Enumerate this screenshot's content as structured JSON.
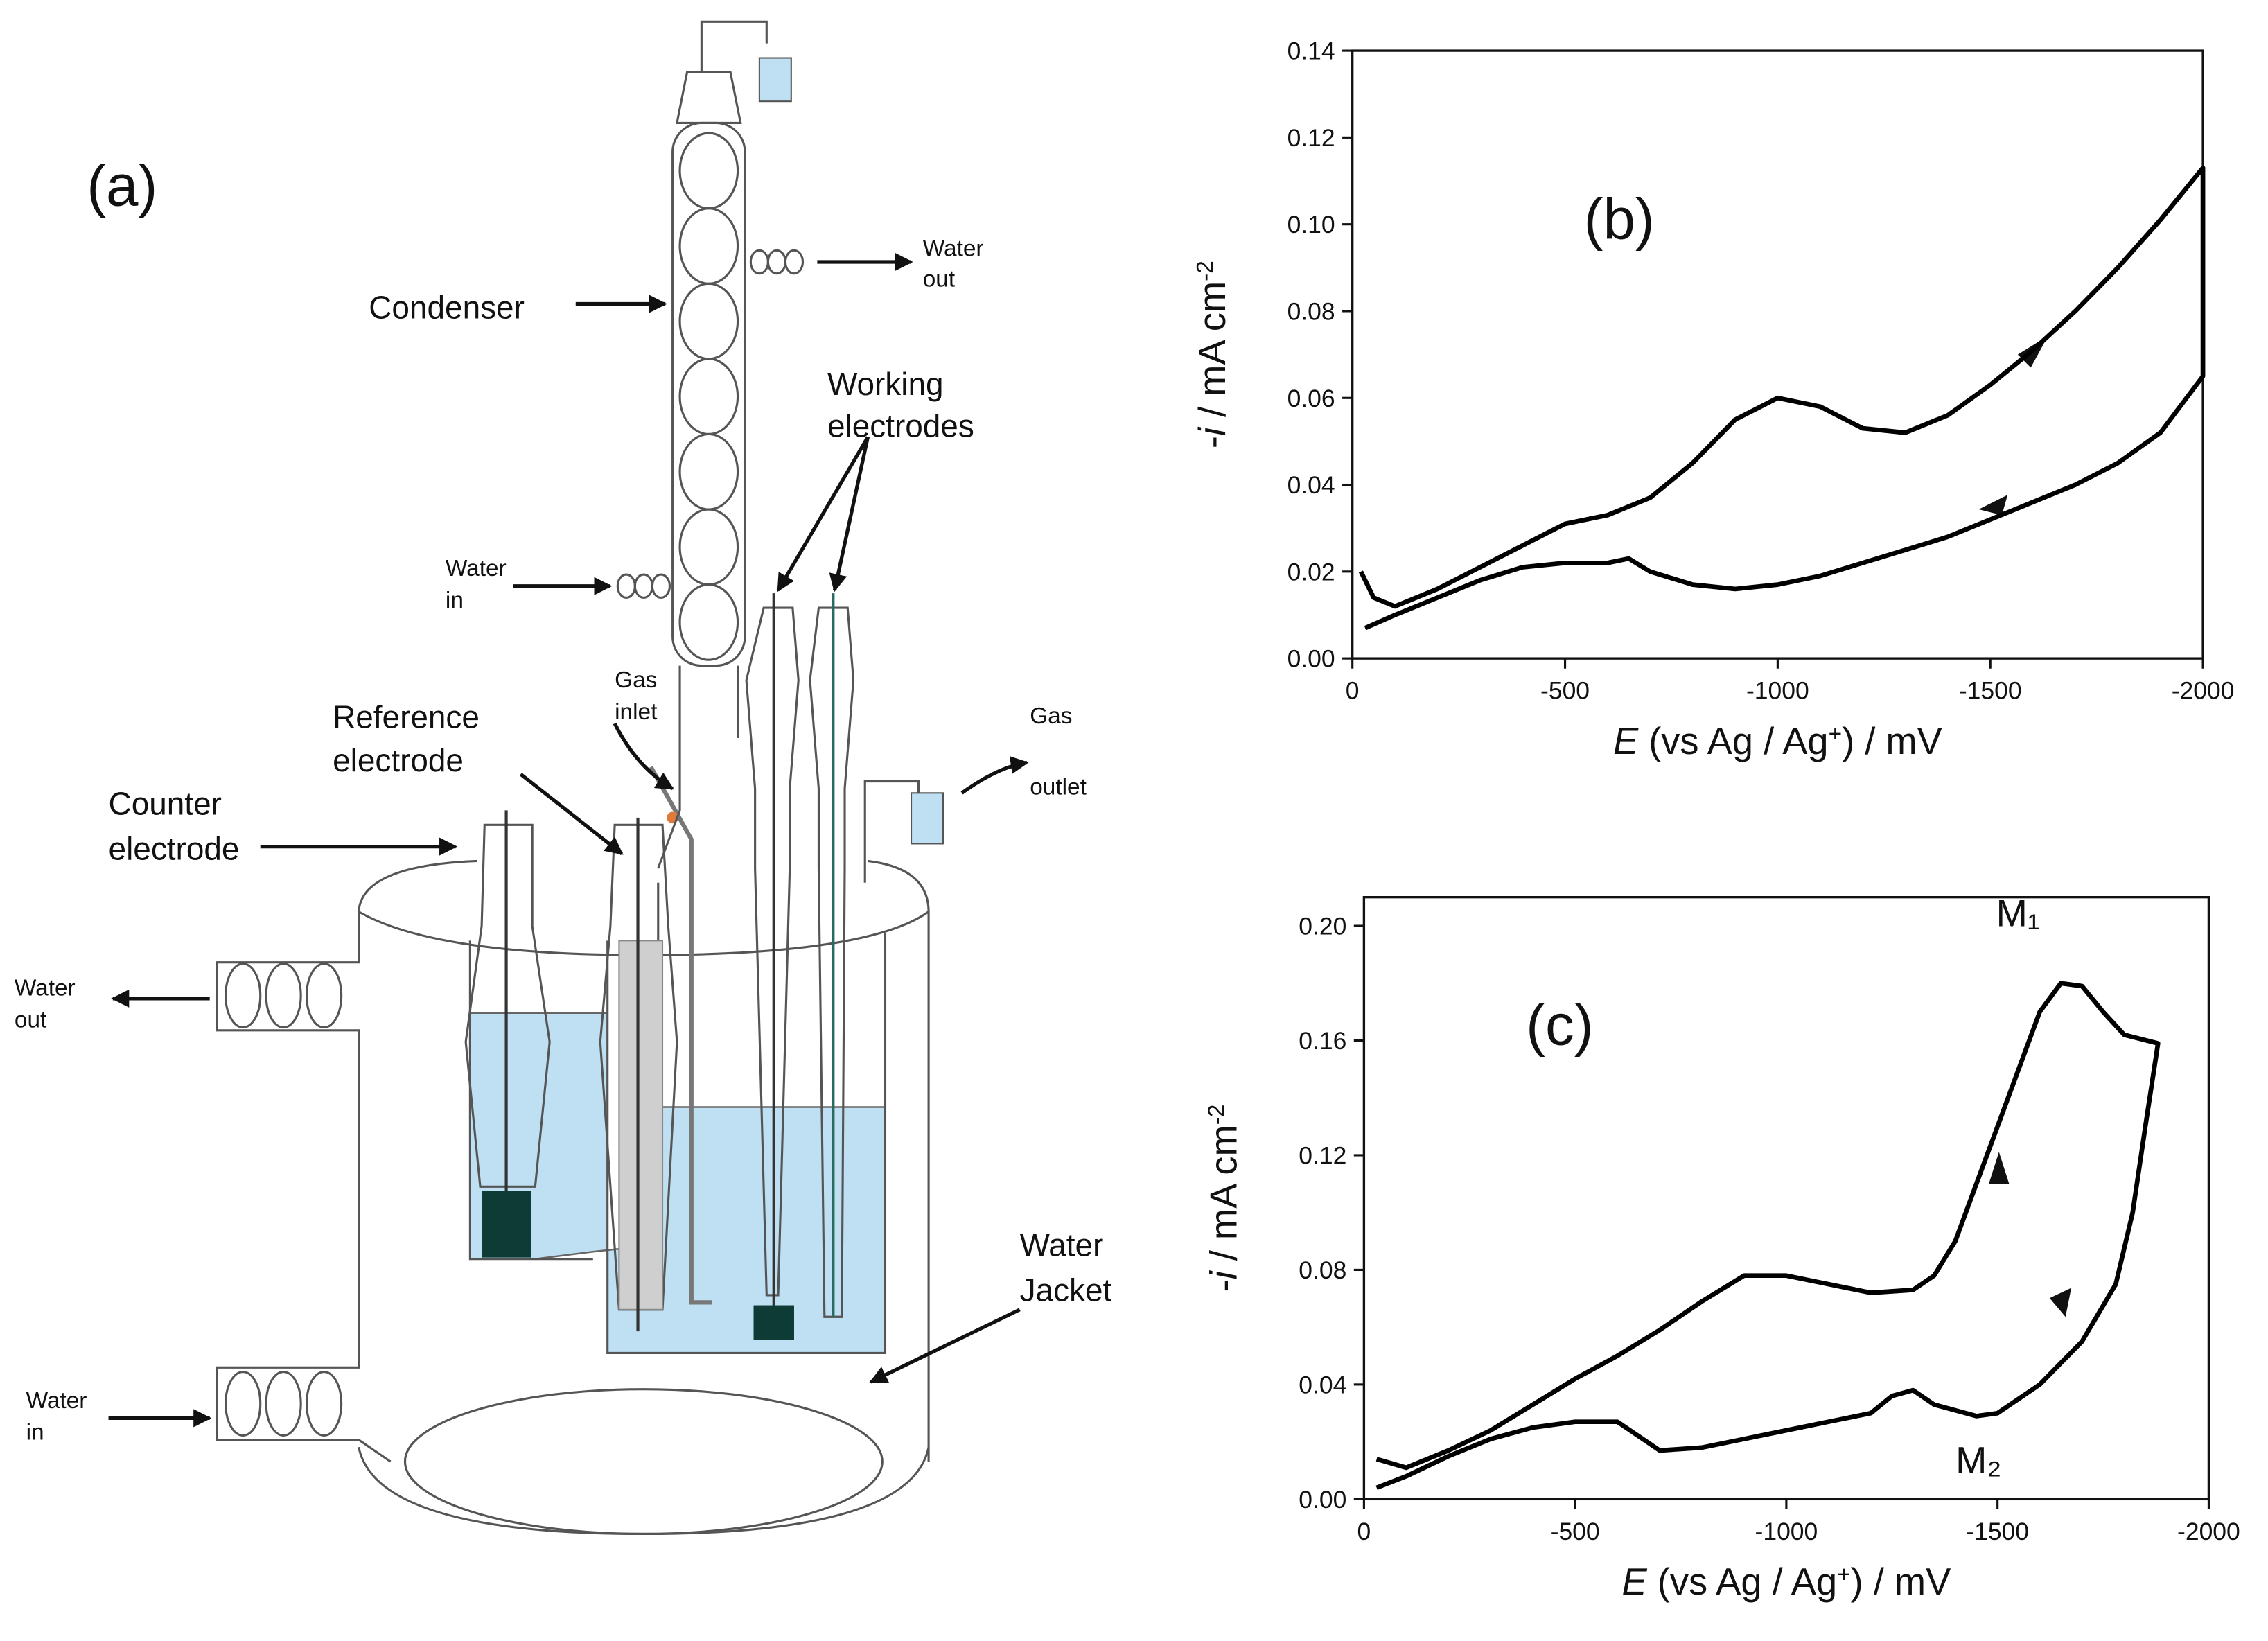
{
  "diagram": {
    "panel_label": "(a)",
    "labels": {
      "condenser": [
        "Condenser"
      ],
      "water_out_top": [
        "Water",
        "out"
      ],
      "working": [
        "Working",
        "electrodes"
      ],
      "water_in_top": [
        "Water",
        "in"
      ],
      "gas_inlet": [
        "Gas",
        "inlet"
      ],
      "reference": [
        "Reference",
        "electrode"
      ],
      "counter": [
        "Counter",
        "electrode"
      ],
      "water_out_left": [
        "Water",
        "out"
      ],
      "gas_outlet": [
        "Gas",
        "outlet"
      ],
      "jacket": [
        "Water",
        "Jacket"
      ],
      "water_in_left": [
        "Water",
        "in"
      ]
    }
  },
  "chart_data": [
    {
      "type": "line",
      "panel_label": "(b)",
      "color": "#000000",
      "xlabel": [
        {
          "text": "E",
          "style": "italic"
        },
        {
          "text": " (vs Ag / Ag"
        },
        {
          "text": "+",
          "style": "sup"
        },
        {
          "text": ") / mV"
        }
      ],
      "ylabel": [
        {
          "text": "-"
        },
        {
          "text": "i",
          "style": "italic"
        },
        {
          "text": " / mA cm"
        },
        {
          "text": "-2",
          "style": "sup"
        }
      ],
      "xlim": [
        0,
        -2000
      ],
      "xticks": [
        0,
        -500,
        -1000,
        -1500,
        -2000
      ],
      "ylim": [
        0,
        0.14
      ],
      "yticks": [
        {
          "value": 0,
          "label": "0.00"
        },
        {
          "value": 0.02,
          "label": "0.02"
        },
        {
          "value": 0.04,
          "label": "0.04"
        },
        {
          "value": 0.06,
          "label": "0.06"
        },
        {
          "value": 0.08,
          "label": "0.08"
        },
        {
          "value": 0.1,
          "label": "0.10"
        },
        {
          "value": 0.12,
          "label": "0.12"
        },
        {
          "value": 0.14,
          "label": "0.14"
        }
      ],
      "x": [
        -20,
        -50,
        -100,
        -200,
        -300,
        -400,
        -500,
        -600,
        -700,
        -800,
        -900,
        -1000,
        -1100,
        -1200,
        -1300,
        -1400,
        -1500,
        -1600,
        -1700,
        -1800,
        -1900,
        -2000,
        -2000,
        -1900,
        -1800,
        -1700,
        -1600,
        -1500,
        -1400,
        -1300,
        -1200,
        -1100,
        -1000,
        -900,
        -800,
        -700,
        -650,
        -600,
        -500,
        -400,
        -300,
        -200,
        -100,
        -30
      ],
      "values": [
        0.02,
        0.014,
        0.012,
        0.016,
        0.021,
        0.026,
        0.031,
        0.033,
        0.037,
        0.045,
        0.055,
        0.06,
        0.058,
        0.053,
        0.052,
        0.056,
        0.063,
        0.071,
        0.08,
        0.09,
        0.101,
        0.113,
        0.065,
        0.052,
        0.045,
        0.04,
        0.036,
        0.032,
        0.028,
        0.025,
        0.022,
        0.019,
        0.017,
        0.016,
        0.017,
        0.02,
        0.023,
        0.022,
        0.022,
        0.021,
        0.018,
        0.014,
        0.01,
        0.007
      ]
    },
    {
      "type": "line",
      "panel_label": "(c)",
      "color": "#000000",
      "annotations": [
        "M₁",
        "M₂"
      ],
      "xlabel": [
        {
          "text": "E",
          "style": "italic"
        },
        {
          "text": " (vs Ag / Ag"
        },
        {
          "text": "+",
          "style": "sup"
        },
        {
          "text": ") / mV"
        }
      ],
      "ylabel": [
        {
          "text": "-"
        },
        {
          "text": "i",
          "style": "italic"
        },
        {
          "text": " / mA cm"
        },
        {
          "text": "-2",
          "style": "sup"
        }
      ],
      "xlim": [
        0,
        -2000
      ],
      "xticks": [
        0,
        -500,
        -1000,
        -1500,
        -2000
      ],
      "ylim": [
        0,
        0.21
      ],
      "yticks": [
        {
          "value": 0,
          "label": "0.00"
        },
        {
          "value": 0.04,
          "label": "0.04"
        },
        {
          "value": 0.08,
          "label": "0.08"
        },
        {
          "value": 0.12,
          "label": "0.12"
        },
        {
          "value": 0.16,
          "label": "0.16"
        },
        {
          "value": 0.2,
          "label": "0.20"
        }
      ],
      "x": [
        -30,
        -100,
        -200,
        -300,
        -400,
        -500,
        -600,
        -700,
        -800,
        -900,
        -1000,
        -1100,
        -1200,
        -1300,
        -1350,
        -1400,
        -1450,
        -1500,
        -1550,
        -1600,
        -1650,
        -1700,
        -1750,
        -1800,
        -1880,
        -1850,
        -1820,
        -1780,
        -1700,
        -1600,
        -1500,
        -1450,
        -1350,
        -1300,
        -1250,
        -1200,
        -1100,
        -1000,
        -900,
        -800,
        -700,
        -600,
        -500,
        -400,
        -300,
        -200,
        -100,
        -30
      ],
      "values": [
        0.014,
        0.011,
        0.017,
        0.024,
        0.033,
        0.042,
        0.05,
        0.059,
        0.069,
        0.078,
        0.078,
        0.075,
        0.072,
        0.073,
        0.078,
        0.09,
        0.11,
        0.13,
        0.15,
        0.17,
        0.18,
        0.179,
        0.17,
        0.162,
        0.159,
        0.13,
        0.1,
        0.075,
        0.055,
        0.04,
        0.03,
        0.029,
        0.033,
        0.038,
        0.036,
        0.03,
        0.027,
        0.024,
        0.021,
        0.018,
        0.017,
        0.027,
        0.027,
        0.025,
        0.021,
        0.015,
        0.008,
        0.004
      ]
    }
  ]
}
